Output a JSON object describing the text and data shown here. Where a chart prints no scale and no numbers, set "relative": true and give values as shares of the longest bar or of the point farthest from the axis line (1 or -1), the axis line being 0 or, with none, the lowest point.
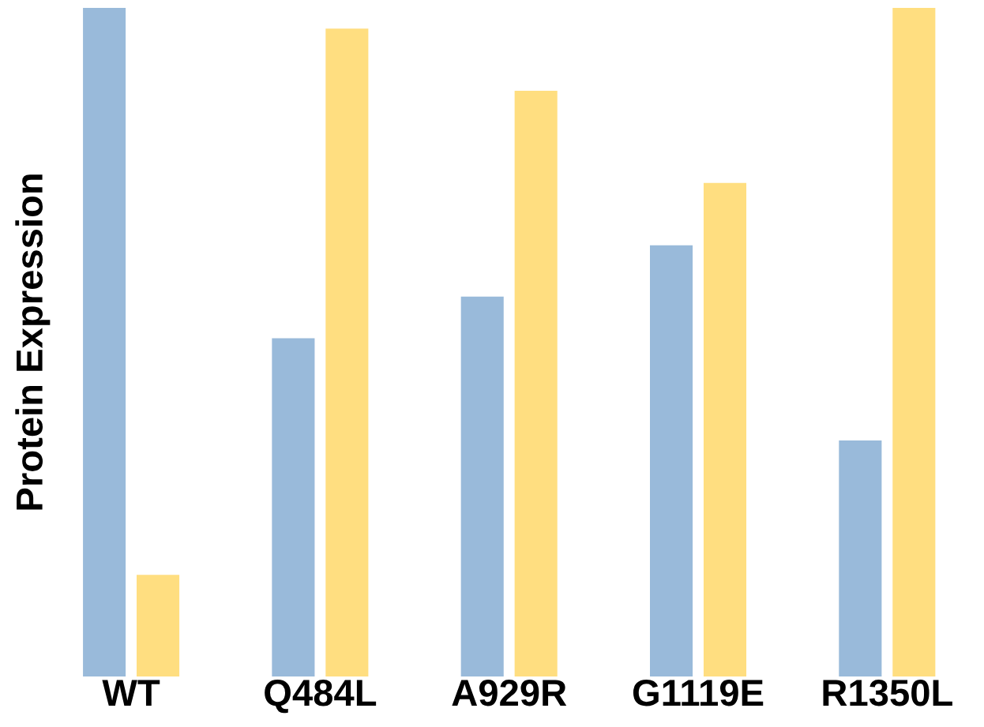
{
  "chart_data": {
    "type": "bar",
    "ylabel": "Protein Expression",
    "relative": true,
    "categories": [
      "WT",
      "Q484L",
      "A929R",
      "G1119E",
      "R1350L"
    ],
    "series": [
      {
        "color": "#99bada",
        "values": [
          1.0,
          0.506,
          0.568,
          0.645,
          0.353
        ]
      },
      {
        "color": "#ffde80",
        "values": [
          0.152,
          0.969,
          0.876,
          0.738,
          1.0
        ]
      }
    ],
    "grid": false
  }
}
